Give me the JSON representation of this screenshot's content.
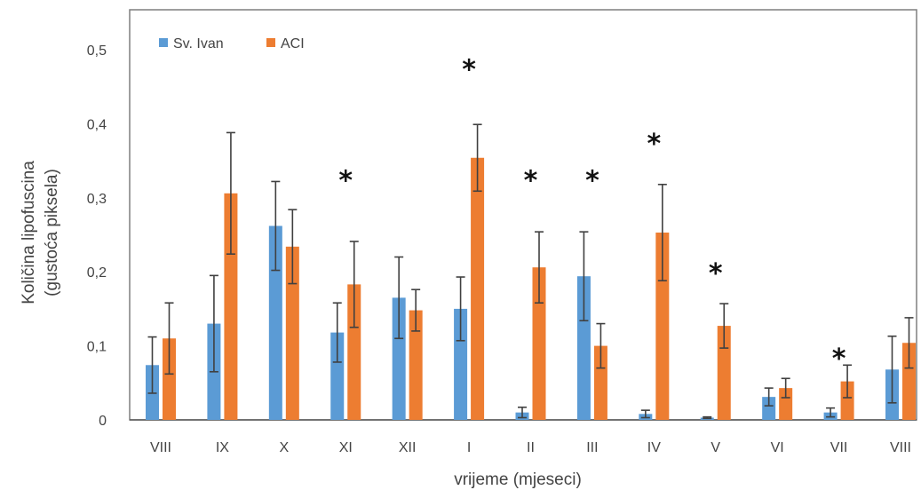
{
  "chart_data": {
    "type": "bar",
    "xlabel": "vrijeme (mjeseci)",
    "ylabel_line1": "Količina lipofuscina",
    "ylabel_line2": "(gustoća piksela)",
    "ylim": [
      0,
      0.5
    ],
    "yticks": [
      {
        "value": 0,
        "label": "0"
      },
      {
        "value": 0.1,
        "label": "0,1"
      },
      {
        "value": 0.2,
        "label": "0,2"
      },
      {
        "value": 0.3,
        "label": "0,3"
      },
      {
        "value": 0.4,
        "label": "0,4"
      },
      {
        "value": 0.5,
        "label": "0,5"
      }
    ],
    "grid": false,
    "legend_position": "top-left",
    "categories": [
      "VIII",
      "IX",
      "X",
      "XI",
      "XII",
      "I",
      "II",
      "III",
      "IV",
      "V",
      "VI",
      "VII",
      "VIII"
    ],
    "series": [
      {
        "name": "Sv. Ivan",
        "color": "#5b9bd5",
        "values": [
          0.074,
          0.13,
          0.262,
          0.118,
          0.165,
          0.15,
          0.01,
          0.194,
          0.008,
          0.003,
          0.031,
          0.01,
          0.068
        ],
        "errors": [
          0.038,
          0.065,
          0.06,
          0.04,
          0.055,
          0.043,
          0.007,
          0.06,
          0.005,
          0.001,
          0.012,
          0.006,
          0.045
        ]
      },
      {
        "name": "ACI",
        "color": "#ed7d31",
        "values": [
          0.11,
          0.306,
          0.234,
          0.183,
          0.148,
          0.354,
          0.206,
          0.1,
          0.253,
          0.127,
          0.043,
          0.052,
          0.104
        ],
        "errors": [
          0.048,
          0.082,
          0.05,
          0.058,
          0.028,
          0.045,
          0.048,
          0.03,
          0.065,
          0.03,
          0.013,
          0.022,
          0.034
        ]
      }
    ],
    "annotations": [
      {
        "category_index": 3,
        "text": "*",
        "y": 0.335
      },
      {
        "category_index": 5,
        "text": "*",
        "y": 0.485
      },
      {
        "category_index": 6,
        "text": "*",
        "y": 0.335
      },
      {
        "category_index": 7,
        "text": "*",
        "y": 0.335
      },
      {
        "category_index": 8,
        "text": "*",
        "y": 0.385
      },
      {
        "category_index": 9,
        "text": "*",
        "y": 0.21
      },
      {
        "category_index": 11,
        "text": "*",
        "y": 0.095
      }
    ],
    "colors": {
      "axis": "#595959",
      "error_bar": "#404040",
      "frame": "#7f7f7f"
    }
  }
}
